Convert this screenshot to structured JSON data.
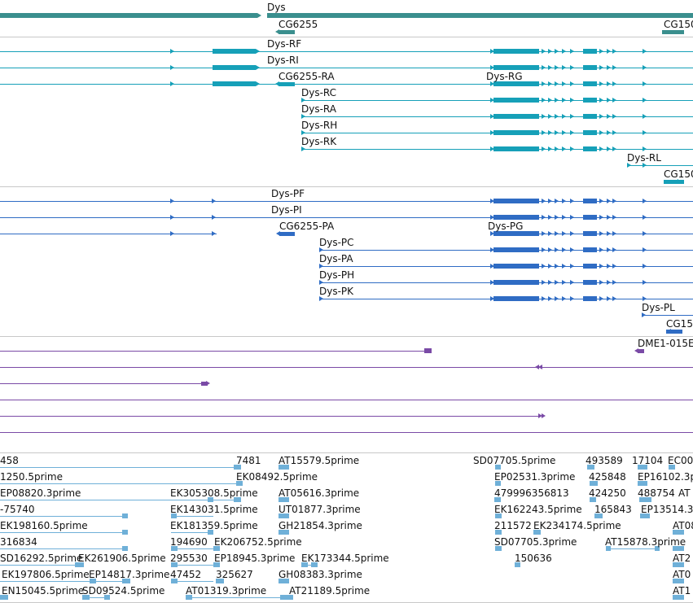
{
  "colors": {
    "gene": "#3a8f8e",
    "transcript": "#16a0b8",
    "protein": "#2f6cc4",
    "repeat": "#7a4aa6",
    "est": "#6fb0d8",
    "separator": "#c8c8c8",
    "label": "#111111"
  },
  "gene_track": {
    "labels": [
      "Dys",
      "CG6255",
      "CG150"
    ]
  },
  "transcript_track": {
    "labels": [
      "Dys-RF",
      "Dys-RI",
      "CG6255-RA",
      "Dys-RG",
      "Dys-RC",
      "Dys-RA",
      "Dys-RH",
      "Dys-RK",
      "Dys-RL",
      "CG150"
    ]
  },
  "protein_track": {
    "labels": [
      "Dys-PF",
      "Dys-PI",
      "CG6255-PA",
      "Dys-PG",
      "Dys-PC",
      "Dys-PA",
      "Dys-PH",
      "Dys-PK",
      "Dys-PL",
      "CG15"
    ]
  },
  "repeat_track": {
    "labels": [
      "DME1-015E"
    ]
  },
  "est_track": {
    "labels": [
      "458",
      "7481",
      "AT15579.5prime",
      "SD07705.5prime",
      "493589",
      "17104",
      "EC00",
      "1250.5prime",
      "EK08492.5prime",
      "EP02531.3prime",
      "425848",
      "EP16102.3p",
      "EP08820.3prime",
      "EK305308.5prime",
      "AT05616.3prime",
      "479996356813",
      "424250",
      "488754",
      "AT",
      "-75740",
      "EK143031.5prime",
      "UT01877.3prime",
      "EK162243.5prime",
      "165843",
      "EP13514.3",
      "EK198160.5prime",
      "EK181359.5prime",
      "GH21854.3prime",
      "211572",
      "EK234174.5prime",
      "AT08",
      "316834",
      "194690",
      "EK206752.5prime",
      "SD07705.3prime",
      "AT15878.3prime",
      "SD16292.5prime",
      "EK261906.5prime",
      "295530",
      "EP18945.3prime",
      "EK173344.5prime",
      "150636",
      "AT2",
      "EK197806.5prime",
      "EP14817.3prime",
      "47452",
      "325627",
      "GH08383.3prime",
      "AT0",
      "EN15045.5prime",
      "SD09524.5prime",
      "AT01319.3prime",
      "AT21189.5prime",
      "AT1"
    ]
  }
}
